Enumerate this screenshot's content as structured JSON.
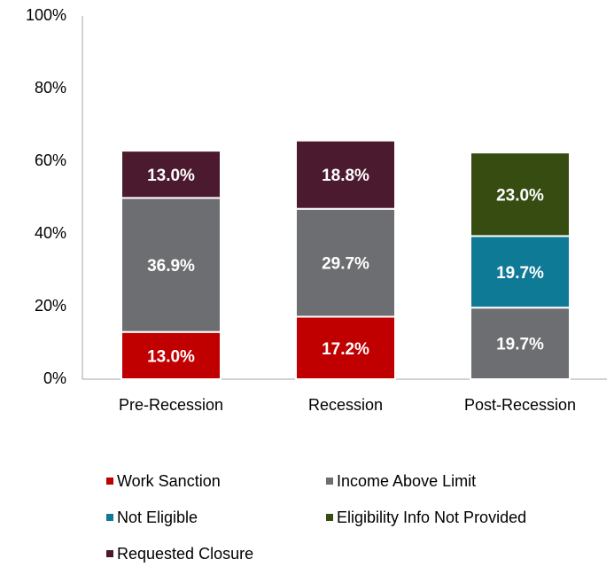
{
  "chart_data": {
    "type": "stacked-bar",
    "categories": [
      "Pre-Recession",
      "Recession",
      "Post-Recession"
    ],
    "series": [
      {
        "name": "Work Sanction",
        "color": "#c00000",
        "values": [
          13.0,
          17.2,
          null
        ],
        "value_labels": [
          "13.0%",
          "17.2%",
          null
        ]
      },
      {
        "name": "Income Above Limit",
        "color": "#6d6e71",
        "values": [
          36.9,
          29.7,
          19.7
        ],
        "value_labels": [
          "36.9%",
          "29.7%",
          "19.7%"
        ]
      },
      {
        "name": "Not Eligible",
        "color": "#0f7a96",
        "values": [
          null,
          null,
          19.7
        ],
        "value_labels": [
          null,
          null,
          "19.7%"
        ]
      },
      {
        "name": "Eligibility Info Not Provided",
        "color": "#374c11",
        "values": [
          null,
          null,
          23.0
        ],
        "value_labels": [
          null,
          null,
          "23.0%"
        ]
      },
      {
        "name": "Requested Closure",
        "color": "#4b1a2e",
        "values": [
          13.0,
          18.8,
          null
        ],
        "value_labels": [
          "13.0%",
          "18.8%",
          null
        ]
      }
    ],
    "ylim": [
      0,
      100
    ],
    "yticks": [
      {
        "value": 0,
        "label": "0%"
      },
      {
        "value": 20,
        "label": "20%"
      },
      {
        "value": 40,
        "label": "40%"
      },
      {
        "value": 60,
        "label": "60%"
      },
      {
        "value": 80,
        "label": "80%"
      },
      {
        "value": 100,
        "label": "100%"
      }
    ],
    "grid": false
  }
}
